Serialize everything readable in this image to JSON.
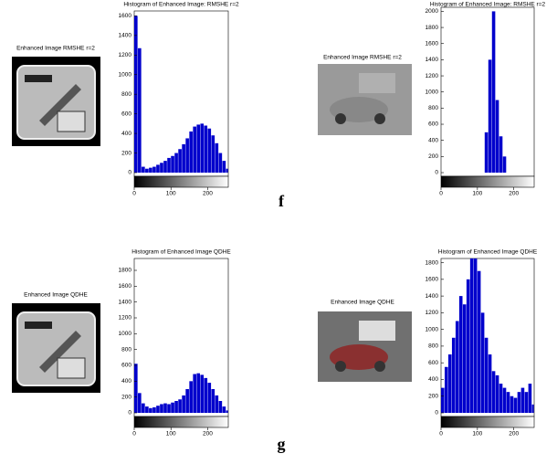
{
  "chart_data": [
    {
      "type": "histogram",
      "title": "Histogram of Enhanced Image: RMSHE r=2",
      "image_title": "Enhanced Image  RMSHE r=2",
      "bins": [
        0,
        10,
        20,
        30,
        40,
        50,
        60,
        70,
        80,
        90,
        100,
        110,
        120,
        130,
        140,
        150,
        160,
        170,
        180,
        190,
        200,
        210,
        220,
        230,
        240,
        250,
        256
      ],
      "values": [
        1600,
        1270,
        60,
        40,
        50,
        60,
        80,
        100,
        120,
        150,
        170,
        200,
        240,
        290,
        350,
        420,
        470,
        490,
        500,
        480,
        450,
        380,
        300,
        200,
        120,
        40
      ],
      "color": "#0000cc",
      "xlim": [
        0,
        256
      ],
      "ylim": [
        0,
        1650
      ],
      "xticks": [
        0,
        100,
        200
      ],
      "yticks": [
        0,
        200,
        400,
        600,
        800,
        1000,
        1200,
        1400,
        1600
      ]
    },
    {
      "type": "histogram",
      "title": "Histogram of Enhanced Image: RMSHE r=2",
      "image_title": "Enhanced Image  RMSHE r=2",
      "bins": [
        0,
        10,
        20,
        30,
        40,
        50,
        60,
        70,
        80,
        90,
        100,
        110,
        120,
        130,
        140,
        150,
        160,
        170,
        180,
        190,
        200,
        210,
        220,
        230,
        240,
        250,
        256
      ],
      "values": [
        0,
        0,
        0,
        0,
        0,
        0,
        0,
        0,
        0,
        0,
        0,
        0,
        500,
        1400,
        2000,
        900,
        450,
        200,
        0,
        0,
        0,
        0,
        0,
        0,
        0,
        0
      ],
      "color": "#0000cc",
      "xlim": [
        0,
        256
      ],
      "ylim": [
        0,
        2050
      ],
      "xticks": [
        0,
        100,
        200
      ],
      "yticks": [
        0,
        200,
        400,
        600,
        800,
        1000,
        1200,
        1400,
        1600,
        1800,
        2000
      ]
    },
    {
      "type": "histogram",
      "title": "Histogram of Enhanced Image QDHE",
      "image_title": "Enhanced Image QDHE",
      "bins": [
        0,
        10,
        20,
        30,
        40,
        50,
        60,
        70,
        80,
        90,
        100,
        110,
        120,
        130,
        140,
        150,
        160,
        170,
        180,
        190,
        200,
        210,
        220,
        230,
        240,
        250,
        256
      ],
      "values": [
        620,
        250,
        120,
        80,
        60,
        70,
        90,
        110,
        120,
        110,
        130,
        150,
        170,
        220,
        300,
        400,
        490,
        500,
        480,
        440,
        380,
        300,
        220,
        150,
        80,
        30
      ],
      "color": "#0000cc",
      "xlim": [
        0,
        256
      ],
      "ylim": [
        0,
        1950
      ],
      "xticks": [
        0,
        100,
        200
      ],
      "yticks": [
        0,
        200,
        400,
        600,
        800,
        1000,
        1200,
        1400,
        1600,
        1800
      ]
    },
    {
      "type": "histogram",
      "title": "Histogram of Enhanced Image QDHE",
      "image_title": "Enhanced Image QDHE",
      "bins": [
        0,
        10,
        20,
        30,
        40,
        50,
        60,
        70,
        80,
        90,
        100,
        110,
        120,
        130,
        140,
        150,
        160,
        170,
        180,
        190,
        200,
        210,
        220,
        230,
        240,
        250,
        256
      ],
      "values": [
        300,
        550,
        700,
        900,
        1100,
        1400,
        1300,
        1600,
        1850,
        1850,
        1700,
        1200,
        900,
        700,
        500,
        450,
        350,
        300,
        250,
        200,
        180,
        250,
        300,
        250,
        350,
        100
      ],
      "color": "#0000cc",
      "xlim": [
        0,
        256
      ],
      "ylim": [
        0,
        1850
      ],
      "xticks": [
        0,
        100,
        200
      ],
      "yticks": [
        0,
        200,
        400,
        600,
        800,
        1000,
        1200,
        1400,
        1600,
        1800
      ]
    }
  ],
  "panel_labels": [
    "f",
    "g"
  ]
}
